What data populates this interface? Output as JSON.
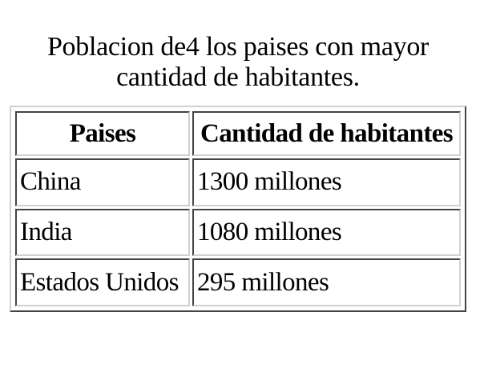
{
  "caption": {
    "line1": "Poblacion de4 los paises con mayor",
    "line2": "cantidad de habitantes."
  },
  "table": {
    "headers": [
      "Paises",
      "Cantidad de habitantes"
    ],
    "rows": [
      [
        "China",
        "1300 millones"
      ],
      [
        "India",
        "1080 millones"
      ],
      [
        "Estados Unidos",
        "295 millones"
      ]
    ]
  }
}
